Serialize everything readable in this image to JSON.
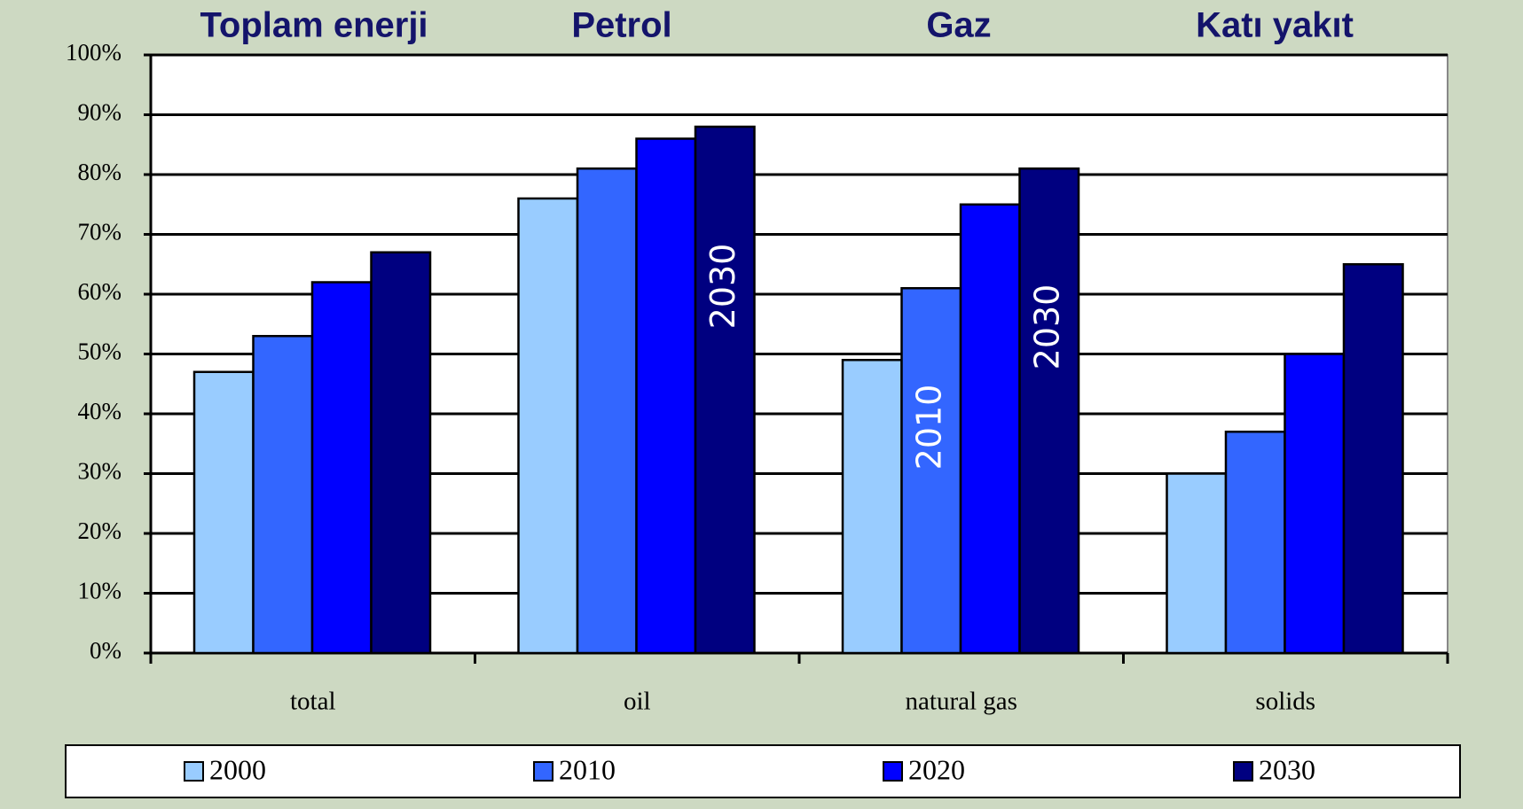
{
  "chart_data": {
    "type": "bar",
    "group_titles": [
      "Toplam enerji",
      "Petrol",
      "Gaz",
      "Katı yakıt"
    ],
    "categories": [
      "total",
      "oil",
      "natural gas",
      "solids"
    ],
    "series": [
      {
        "name": "2000",
        "color": "#99ccff",
        "values": [
          47,
          76,
          49,
          30
        ]
      },
      {
        "name": "2010",
        "color": "#3366ff",
        "values": [
          53,
          81,
          61,
          37
        ]
      },
      {
        "name": "2020",
        "color": "#0000ff",
        "values": [
          62,
          86,
          75,
          50
        ]
      },
      {
        "name": "2030",
        "color": "#000080",
        "values": [
          67,
          88,
          81,
          65
        ]
      }
    ],
    "annotations": [
      "2030",
      "2010",
      "2030"
    ],
    "ylim": [
      0,
      100
    ],
    "yticks": [
      {
        "value": 0,
        "label": "0%"
      },
      {
        "value": 10,
        "label": "10%"
      },
      {
        "value": 20,
        "label": "20%"
      },
      {
        "value": 30,
        "label": "30%"
      },
      {
        "value": 40,
        "label": "40%"
      },
      {
        "value": 50,
        "label": "50%"
      },
      {
        "value": 60,
        "label": "60%"
      },
      {
        "value": 70,
        "label": "70%"
      },
      {
        "value": 80,
        "label": "80%"
      },
      {
        "value": 90,
        "label": "90%"
      },
      {
        "value": 100,
        "label": "100%"
      }
    ],
    "grid": true,
    "legend": "bottom"
  }
}
